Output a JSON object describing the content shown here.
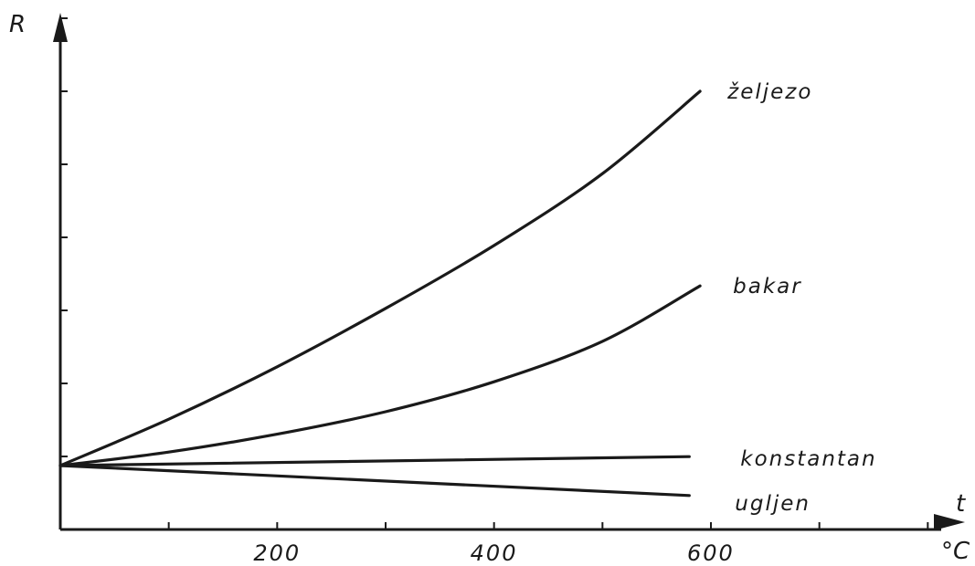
{
  "chart_data": {
    "type": "line",
    "title": "",
    "ylabel": "R",
    "xlabel": "t",
    "xunit": "°C",
    "xticks": [
      200,
      400,
      600
    ],
    "xlim": [
      0,
      800
    ],
    "ylim": [
      0,
      8
    ],
    "grid": false,
    "legend": "labels at line ends",
    "series": [
      {
        "name": "željezo",
        "x": [
          0,
          100,
          200,
          300,
          400,
          500,
          590
        ],
        "y": [
          1.0,
          1.62,
          2.32,
          3.1,
          3.94,
          4.9,
          6.0
        ]
      },
      {
        "name": "bakar",
        "x": [
          0,
          100,
          200,
          300,
          400,
          500,
          590
        ],
        "y": [
          1.0,
          1.18,
          1.42,
          1.72,
          2.12,
          2.66,
          3.4
        ]
      },
      {
        "name": "konstantan",
        "x": [
          0,
          580
        ],
        "y": [
          1.0,
          1.12
        ]
      },
      {
        "name": "ugljen",
        "x": [
          0,
          580
        ],
        "y": [
          1.0,
          0.6
        ]
      }
    ]
  }
}
